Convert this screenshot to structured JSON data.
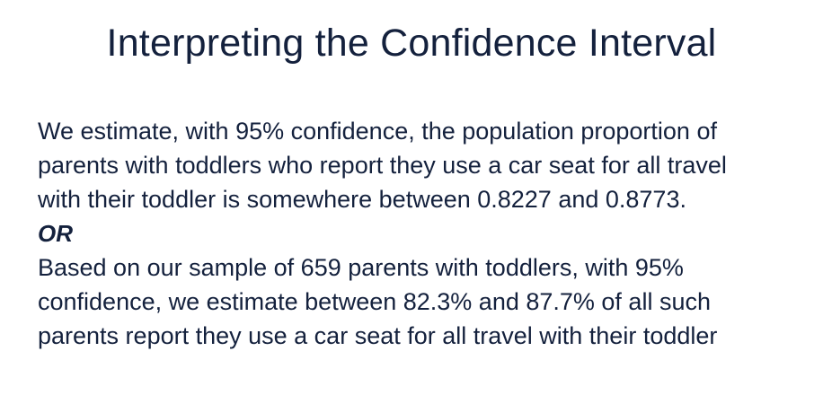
{
  "slide": {
    "title": "Interpreting the Confidence Interval",
    "paragraph1_lines": [
      "We estimate, with 95% confidence, the population proportion of",
      "parents with toddlers who report they use a car seat for all travel",
      "with their toddler is somewhere between 0.8227 and 0.8773."
    ],
    "separator": "OR",
    "paragraph2_lines": [
      "Based on our sample of 659 parents with toddlers, with 95%",
      "confidence, we estimate between 82.3% and 87.7% of all such",
      "parents report they use a car seat for all travel with their toddler"
    ]
  }
}
